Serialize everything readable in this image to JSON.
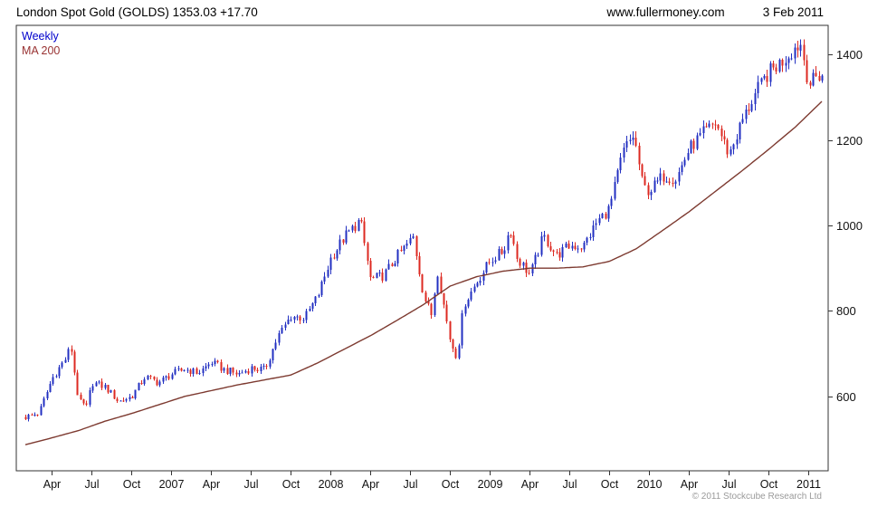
{
  "header": {
    "title": "London Spot Gold (GOLDS) 1353.03 +17.70",
    "website": "www.fullermoney.com",
    "date": "3 Feb 2011"
  },
  "legend": {
    "series1": "Weekly",
    "series2": "MA 200"
  },
  "footer": {
    "copyright": "© 2011 Stockcube Research Ltd"
  },
  "colors": {
    "up_candle": "#2330c2",
    "down_candle": "#dd2a22",
    "ma_line": "#7d3a30",
    "axis": "#333333",
    "label": "#111111"
  },
  "chart_data": {
    "type": "candlestick",
    "title": "London Spot Gold (GOLDS)",
    "last_price": 1353.03,
    "change": "+17.70",
    "timeframe": "Weekly",
    "overlay": "MA 200",
    "legend_position": "top-left",
    "grid": false,
    "y_axis_side": "right",
    "y_ticks": [
      "600",
      "800",
      "1000",
      "1200",
      "1400"
    ],
    "y_tick_values": [
      600,
      800,
      1000,
      1200,
      1400
    ],
    "y_range": [
      426,
      1468
    ],
    "x_range_months": [
      0,
      60
    ],
    "x_axis_note": "weekly candles, early 2006 through Feb 2011; t = months from start",
    "x_ticks": [
      {
        "t": 2,
        "label": "Apr"
      },
      {
        "t": 5,
        "label": "Jul"
      },
      {
        "t": 8,
        "label": "Oct"
      },
      {
        "t": 11,
        "label": "2007"
      },
      {
        "t": 14,
        "label": "Apr"
      },
      {
        "t": 17,
        "label": "Jul"
      },
      {
        "t": 20,
        "label": "Oct"
      },
      {
        "t": 23,
        "label": "2008"
      },
      {
        "t": 26,
        "label": "Apr"
      },
      {
        "t": 29,
        "label": "Jul"
      },
      {
        "t": 32,
        "label": "Oct"
      },
      {
        "t": 35,
        "label": "2009"
      },
      {
        "t": 38,
        "label": "Apr"
      },
      {
        "t": 41,
        "label": "Jul"
      },
      {
        "t": 44,
        "label": "Oct"
      },
      {
        "t": 47,
        "label": "2010"
      },
      {
        "t": 50,
        "label": "Apr"
      },
      {
        "t": 53,
        "label": "Jul"
      },
      {
        "t": 56,
        "label": "Oct"
      },
      {
        "t": 59,
        "label": "2011"
      }
    ],
    "close_anchors": [
      [
        0,
        552
      ],
      [
        1,
        560
      ],
      [
        2,
        642
      ],
      [
        3,
        688
      ],
      [
        3.4,
        718
      ],
      [
        4,
        588
      ],
      [
        4.6,
        575
      ],
      [
        5,
        633
      ],
      [
        6,
        622
      ],
      [
        7,
        588
      ],
      [
        8,
        600
      ],
      [
        9,
        646
      ],
      [
        10,
        632
      ],
      [
        11,
        652
      ],
      [
        12,
        664
      ],
      [
        13,
        655
      ],
      [
        14,
        680
      ],
      [
        15,
        662
      ],
      [
        16,
        652
      ],
      [
        17,
        666
      ],
      [
        18,
        662
      ],
      [
        19,
        740
      ],
      [
        20,
        788
      ],
      [
        21,
        783
      ],
      [
        22,
        834
      ],
      [
        23,
        924
      ],
      [
        24,
        972
      ],
      [
        25.2,
        1012
      ],
      [
        26,
        872
      ],
      [
        27,
        884
      ],
      [
        28,
        928
      ],
      [
        29.2,
        972
      ],
      [
        30,
        833
      ],
      [
        30.6,
        790
      ],
      [
        31,
        898
      ],
      [
        32,
        728
      ],
      [
        32.5,
        692
      ],
      [
        33,
        815
      ],
      [
        34,
        868
      ],
      [
        35,
        918
      ],
      [
        36,
        940
      ],
      [
        36.5,
        996
      ],
      [
        37,
        925
      ],
      [
        38,
        884
      ],
      [
        39,
        975
      ],
      [
        40,
        930
      ],
      [
        41,
        953
      ],
      [
        42,
        950
      ],
      [
        43,
        1006
      ],
      [
        44,
        1040
      ],
      [
        45,
        1172
      ],
      [
        45.8,
        1212
      ],
      [
        46.5,
        1092
      ],
      [
        47,
        1080
      ],
      [
        48,
        1116
      ],
      [
        49,
        1110
      ],
      [
        50,
        1180
      ],
      [
        51,
        1214
      ],
      [
        52,
        1240
      ],
      [
        53,
        1166
      ],
      [
        54,
        1246
      ],
      [
        55,
        1310
      ],
      [
        56,
        1358
      ],
      [
        57,
        1384
      ],
      [
        58,
        1418
      ],
      [
        58.4,
        1424
      ],
      [
        59,
        1330
      ],
      [
        59.6,
        1348
      ],
      [
        60,
        1353
      ]
    ],
    "ma200_anchors": [
      [
        0,
        487
      ],
      [
        2,
        503
      ],
      [
        4,
        520
      ],
      [
        6,
        542
      ],
      [
        8,
        560
      ],
      [
        12,
        600
      ],
      [
        16,
        627
      ],
      [
        20,
        650
      ],
      [
        22,
        678
      ],
      [
        24,
        710
      ],
      [
        26,
        742
      ],
      [
        28,
        778
      ],
      [
        30,
        815
      ],
      [
        32,
        858
      ],
      [
        34,
        880
      ],
      [
        36,
        893
      ],
      [
        38,
        900
      ],
      [
        40,
        900
      ],
      [
        42,
        903
      ],
      [
        44,
        916
      ],
      [
        46,
        945
      ],
      [
        48,
        988
      ],
      [
        50,
        1032
      ],
      [
        52,
        1080
      ],
      [
        54,
        1128
      ],
      [
        56,
        1178
      ],
      [
        58,
        1230
      ],
      [
        60,
        1290
      ]
    ]
  }
}
